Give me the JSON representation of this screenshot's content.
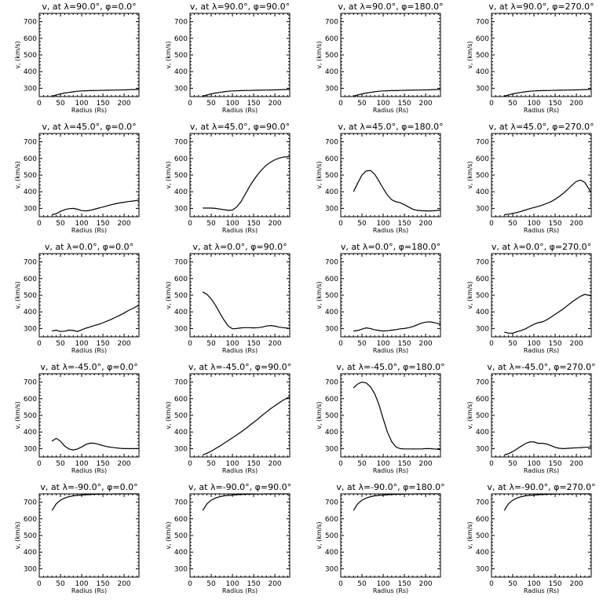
{
  "figure": {
    "colors": {
      "background": "#ffffff",
      "ink": "#000000"
    }
  },
  "chart_data": [
    {
      "type": "line",
      "title": "v, at λ=90.0°, φ=0.0°",
      "xlabel": "Radius (Rs)",
      "ylabel": "v, (km/s)",
      "xlim": [
        0,
        235
      ],
      "ylim": [
        250,
        750
      ],
      "xticks": [
        0,
        50,
        100,
        150,
        200
      ],
      "yticks": [
        300,
        400,
        500,
        600,
        700
      ],
      "grid": false,
      "x": [
        30,
        40,
        50,
        60,
        70,
        80,
        90,
        100,
        120,
        140,
        160,
        180,
        200,
        220,
        235
      ],
      "y": [
        253,
        260,
        266,
        271,
        275,
        279,
        282,
        284,
        286,
        287,
        288,
        289,
        290,
        292,
        293
      ]
    },
    {
      "type": "line",
      "title": "v, at λ=90.0°, φ=90.0°",
      "xlabel": "Radius (Rs)",
      "ylabel": "v, (km/s)",
      "xlim": [
        0,
        235
      ],
      "ylim": [
        250,
        750
      ],
      "xticks": [
        0,
        50,
        100,
        150,
        200
      ],
      "yticks": [
        300,
        400,
        500,
        600,
        700
      ],
      "grid": false,
      "x": [
        30,
        40,
        50,
        60,
        70,
        80,
        90,
        100,
        120,
        140,
        160,
        180,
        200,
        220,
        235
      ],
      "y": [
        253,
        260,
        266,
        271,
        275,
        279,
        282,
        284,
        286,
        287,
        288,
        289,
        290,
        292,
        293
      ]
    },
    {
      "type": "line",
      "title": "v, at λ=90.0°, φ=180.0°",
      "xlabel": "Radius (Rs)",
      "ylabel": "v, (km/s)",
      "xlim": [
        0,
        235
      ],
      "ylim": [
        250,
        750
      ],
      "xticks": [
        0,
        50,
        100,
        150,
        200
      ],
      "yticks": [
        300,
        400,
        500,
        600,
        700
      ],
      "grid": false,
      "x": [
        30,
        40,
        50,
        60,
        70,
        80,
        90,
        100,
        120,
        140,
        160,
        180,
        200,
        220,
        235
      ],
      "y": [
        253,
        260,
        266,
        271,
        275,
        279,
        282,
        284,
        286,
        287,
        288,
        289,
        290,
        292,
        293
      ]
    },
    {
      "type": "line",
      "title": "v, at λ=90.0°, φ=270.0°",
      "xlabel": "Radius (Rs)",
      "ylabel": "v, (km/s)",
      "xlim": [
        0,
        235
      ],
      "ylim": [
        250,
        750
      ],
      "xticks": [
        0,
        50,
        100,
        150,
        200
      ],
      "yticks": [
        300,
        400,
        500,
        600,
        700
      ],
      "grid": false,
      "x": [
        30,
        40,
        50,
        60,
        70,
        80,
        90,
        100,
        120,
        140,
        160,
        180,
        200,
        220,
        235
      ],
      "y": [
        253,
        260,
        266,
        271,
        275,
        279,
        282,
        284,
        286,
        287,
        288,
        289,
        290,
        292,
        293
      ]
    },
    {
      "type": "line",
      "title": "v, at λ=45.0°, φ=0.0°",
      "xlabel": "Radius (Rs)",
      "ylabel": "v, (km/s)",
      "xlim": [
        0,
        235
      ],
      "ylim": [
        250,
        750
      ],
      "xticks": [
        0,
        50,
        100,
        150,
        200
      ],
      "yticks": [
        300,
        400,
        500,
        600,
        700
      ],
      "grid": false,
      "x": [
        30,
        40,
        50,
        60,
        70,
        80,
        90,
        100,
        110,
        120,
        130,
        140,
        150,
        160,
        170,
        180,
        190,
        200,
        210,
        220,
        235
      ],
      "y": [
        262,
        268,
        282,
        292,
        298,
        300,
        295,
        287,
        285,
        288,
        295,
        302,
        308,
        315,
        322,
        328,
        333,
        337,
        341,
        344,
        350
      ]
    },
    {
      "type": "line",
      "title": "v, at λ=45.0°, φ=90.0°",
      "xlabel": "Radius (Rs)",
      "ylabel": "v, (km/s)",
      "xlim": [
        0,
        235
      ],
      "ylim": [
        250,
        750
      ],
      "xticks": [
        0,
        50,
        100,
        150,
        200
      ],
      "yticks": [
        300,
        400,
        500,
        600,
        700
      ],
      "grid": false,
      "x": [
        30,
        40,
        50,
        60,
        70,
        80,
        90,
        100,
        110,
        120,
        130,
        140,
        150,
        160,
        170,
        180,
        190,
        200,
        210,
        220,
        235
      ],
      "y": [
        302,
        302,
        302,
        300,
        296,
        292,
        288,
        290,
        308,
        340,
        385,
        430,
        470,
        505,
        535,
        560,
        578,
        592,
        602,
        608,
        612
      ]
    },
    {
      "type": "line",
      "title": "v, at λ=45.0°, φ=180.0°",
      "xlabel": "Radius (Rs)",
      "ylabel": "v, (km/s)",
      "xlim": [
        0,
        235
      ],
      "ylim": [
        250,
        750
      ],
      "xticks": [
        0,
        50,
        100,
        150,
        200
      ],
      "yticks": [
        300,
        400,
        500,
        600,
        700
      ],
      "grid": false,
      "x": [
        30,
        40,
        50,
        60,
        70,
        80,
        90,
        100,
        110,
        120,
        130,
        140,
        150,
        160,
        170,
        180,
        190,
        200,
        210,
        220,
        235
      ],
      "y": [
        400,
        452,
        500,
        525,
        528,
        505,
        465,
        420,
        380,
        352,
        340,
        334,
        322,
        308,
        295,
        288,
        286,
        285,
        285,
        286,
        290
      ]
    },
    {
      "type": "line",
      "title": "v, at λ=45.0°, φ=270.0°",
      "xlabel": "Radius (Rs)",
      "ylabel": "v, (km/s)",
      "xlim": [
        0,
        235
      ],
      "ylim": [
        250,
        750
      ],
      "xticks": [
        0,
        50,
        100,
        150,
        200
      ],
      "yticks": [
        300,
        400,
        500,
        600,
        700
      ],
      "grid": false,
      "x": [
        30,
        40,
        50,
        60,
        70,
        80,
        90,
        100,
        110,
        120,
        130,
        140,
        150,
        160,
        170,
        180,
        190,
        200,
        210,
        220,
        235
      ],
      "y": [
        262,
        265,
        270,
        275,
        282,
        290,
        298,
        305,
        312,
        320,
        330,
        340,
        355,
        372,
        392,
        415,
        440,
        462,
        470,
        455,
        395
      ]
    },
    {
      "type": "line",
      "title": "v, at λ=0.0°, φ=0.0°",
      "xlabel": "Radius (Rs)",
      "ylabel": "v, (km/s)",
      "xlim": [
        0,
        235
      ],
      "ylim": [
        250,
        750
      ],
      "xticks": [
        0,
        50,
        100,
        150,
        200
      ],
      "yticks": [
        300,
        400,
        500,
        600,
        700
      ],
      "grid": false,
      "x": [
        30,
        40,
        50,
        60,
        70,
        80,
        90,
        100,
        110,
        120,
        130,
        140,
        150,
        160,
        170,
        180,
        190,
        200,
        210,
        220,
        235
      ],
      "y": [
        285,
        290,
        282,
        284,
        290,
        288,
        282,
        292,
        302,
        310,
        318,
        325,
        335,
        345,
        355,
        368,
        380,
        393,
        408,
        420,
        440
      ]
    },
    {
      "type": "line",
      "title": "v, at λ=0.0°, φ=90.0°",
      "xlabel": "Radius (Rs)",
      "ylabel": "v, (km/s)",
      "xlim": [
        0,
        235
      ],
      "ylim": [
        250,
        750
      ],
      "xticks": [
        0,
        50,
        100,
        150,
        200
      ],
      "yticks": [
        300,
        400,
        500,
        600,
        700
      ],
      "grid": false,
      "x": [
        30,
        40,
        50,
        60,
        70,
        80,
        90,
        100,
        110,
        120,
        130,
        140,
        150,
        160,
        170,
        180,
        190,
        200,
        210,
        220,
        235
      ],
      "y": [
        520,
        505,
        478,
        440,
        395,
        352,
        315,
        298,
        300,
        304,
        305,
        305,
        304,
        305,
        308,
        315,
        318,
        314,
        308,
        305,
        300
      ]
    },
    {
      "type": "line",
      "title": "v, at λ=0.0°, φ=180.0°",
      "xlabel": "Radius (Rs)",
      "ylabel": "v, (km/s)",
      "xlim": [
        0,
        235
      ],
      "ylim": [
        250,
        750
      ],
      "xticks": [
        0,
        50,
        100,
        150,
        200
      ],
      "yticks": [
        300,
        400,
        500,
        600,
        700
      ],
      "grid": false,
      "x": [
        30,
        40,
        50,
        60,
        70,
        80,
        90,
        100,
        110,
        120,
        130,
        140,
        150,
        160,
        170,
        180,
        190,
        200,
        210,
        220,
        235
      ],
      "y": [
        285,
        288,
        296,
        304,
        300,
        292,
        288,
        285,
        287,
        290,
        293,
        298,
        300,
        305,
        312,
        322,
        332,
        338,
        340,
        336,
        325
      ]
    },
    {
      "type": "line",
      "title": "v, at λ=0.0°, φ=270.0°",
      "xlabel": "Radius (Rs)",
      "ylabel": "v, (km/s)",
      "xlim": [
        0,
        235
      ],
      "ylim": [
        250,
        750
      ],
      "xticks": [
        0,
        50,
        100,
        150,
        200
      ],
      "yticks": [
        300,
        400,
        500,
        600,
        700
      ],
      "grid": false,
      "x": [
        30,
        40,
        50,
        60,
        70,
        80,
        90,
        100,
        110,
        120,
        130,
        140,
        150,
        160,
        170,
        180,
        190,
        200,
        210,
        220,
        235
      ],
      "y": [
        278,
        272,
        272,
        280,
        288,
        298,
        312,
        325,
        335,
        340,
        352,
        368,
        385,
        402,
        420,
        440,
        460,
        478,
        494,
        505,
        495
      ]
    },
    {
      "type": "line",
      "title": "v, at λ=-45.0°, φ=0.0°",
      "xlabel": "Radius (Rs)",
      "ylabel": "v, (km/s)",
      "xlim": [
        0,
        235
      ],
      "ylim": [
        250,
        750
      ],
      "xticks": [
        0,
        50,
        100,
        150,
        200
      ],
      "yticks": [
        300,
        400,
        500,
        600,
        700
      ],
      "grid": false,
      "x": [
        30,
        40,
        50,
        60,
        70,
        80,
        90,
        100,
        110,
        120,
        130,
        140,
        150,
        160,
        170,
        180,
        190,
        200,
        210,
        220,
        235
      ],
      "y": [
        345,
        362,
        345,
        315,
        298,
        292,
        298,
        310,
        325,
        333,
        332,
        326,
        318,
        312,
        308,
        305,
        302,
        300,
        300,
        300,
        300
      ]
    },
    {
      "type": "line",
      "title": "v, at λ=-45.0°, φ=90.0°",
      "xlabel": "Radius (Rs)",
      "ylabel": "v, (km/s)",
      "xlim": [
        0,
        235
      ],
      "ylim": [
        250,
        750
      ],
      "xticks": [
        0,
        50,
        100,
        150,
        200
      ],
      "yticks": [
        300,
        400,
        500,
        600,
        700
      ],
      "grid": false,
      "x": [
        30,
        40,
        50,
        60,
        70,
        80,
        90,
        100,
        110,
        120,
        130,
        140,
        150,
        160,
        170,
        180,
        190,
        200,
        210,
        220,
        235
      ],
      "y": [
        262,
        272,
        285,
        300,
        315,
        332,
        348,
        365,
        382,
        400,
        418,
        438,
        458,
        478,
        500,
        520,
        540,
        558,
        575,
        592,
        612
      ]
    },
    {
      "type": "line",
      "title": "v, at λ=-45.0°, φ=180.0°",
      "xlabel": "Radius (Rs)",
      "ylabel": "v, (km/s)",
      "xlim": [
        0,
        235
      ],
      "ylim": [
        250,
        750
      ],
      "xticks": [
        0,
        50,
        100,
        150,
        200
      ],
      "yticks": [
        300,
        400,
        500,
        600,
        700
      ],
      "grid": false,
      "x": [
        30,
        40,
        50,
        60,
        70,
        80,
        90,
        100,
        110,
        120,
        130,
        140,
        150,
        160,
        170,
        180,
        190,
        200,
        210,
        220,
        235
      ],
      "y": [
        665,
        688,
        700,
        695,
        672,
        630,
        565,
        480,
        400,
        342,
        310,
        300,
        298,
        298,
        298,
        298,
        298,
        300,
        300,
        298,
        295
      ]
    },
    {
      "type": "line",
      "title": "v, at λ=-45.0°, φ=270.0°",
      "xlabel": "Radius (Rs)",
      "ylabel": "v, (km/s)",
      "xlim": [
        0,
        235
      ],
      "ylim": [
        250,
        750
      ],
      "xticks": [
        0,
        50,
        100,
        150,
        200
      ],
      "yticks": [
        300,
        400,
        500,
        600,
        700
      ],
      "grid": false,
      "x": [
        30,
        40,
        50,
        60,
        70,
        80,
        90,
        100,
        110,
        120,
        130,
        140,
        150,
        160,
        170,
        180,
        190,
        200,
        210,
        220,
        235
      ],
      "y": [
        262,
        270,
        282,
        298,
        315,
        330,
        340,
        340,
        332,
        332,
        328,
        318,
        308,
        302,
        300,
        302,
        304,
        305,
        306,
        308,
        310
      ]
    },
    {
      "type": "line",
      "title": "v, at λ=-90.0°, φ=0.0°",
      "xlabel": "Radius (Rs)",
      "ylabel": "v, (km/s)",
      "xlim": [
        0,
        235
      ],
      "ylim": [
        250,
        750
      ],
      "xticks": [
        0,
        50,
        100,
        150,
        200
      ],
      "yticks": [
        300,
        400,
        500,
        600,
        700
      ],
      "grid": false,
      "x": [
        30,
        40,
        50,
        60,
        70,
        80,
        90,
        100,
        120,
        140,
        160,
        180,
        200,
        220,
        235
      ],
      "y": [
        650,
        690,
        712,
        725,
        733,
        738,
        741,
        743,
        746,
        748,
        749,
        750,
        751,
        751,
        752
      ]
    },
    {
      "type": "line",
      "title": "v, at λ=-90.0°, φ=90.0°",
      "xlabel": "Radius (Rs)",
      "ylabel": "v, (km/s)",
      "xlim": [
        0,
        235
      ],
      "ylim": [
        250,
        750
      ],
      "xticks": [
        0,
        50,
        100,
        150,
        200
      ],
      "yticks": [
        300,
        400,
        500,
        600,
        700
      ],
      "grid": false,
      "x": [
        30,
        40,
        50,
        60,
        70,
        80,
        90,
        100,
        120,
        140,
        160,
        180,
        200,
        220,
        235
      ],
      "y": [
        650,
        690,
        712,
        725,
        733,
        738,
        741,
        743,
        746,
        748,
        749,
        750,
        751,
        751,
        752
      ]
    },
    {
      "type": "line",
      "title": "v, at λ=-90.0°, φ=180.0°",
      "xlabel": "Radius (Rs)",
      "ylabel": "v, (km/s)",
      "xlim": [
        0,
        235
      ],
      "ylim": [
        250,
        750
      ],
      "xticks": [
        0,
        50,
        100,
        150,
        200
      ],
      "yticks": [
        300,
        400,
        500,
        600,
        700
      ],
      "grid": false,
      "x": [
        30,
        40,
        50,
        60,
        70,
        80,
        90,
        100,
        120,
        140,
        160,
        180,
        200,
        220,
        235
      ],
      "y": [
        650,
        690,
        712,
        725,
        733,
        738,
        741,
        743,
        746,
        748,
        749,
        750,
        751,
        751,
        752
      ]
    },
    {
      "type": "line",
      "title": "v, at λ=-90.0°, φ=270.0°",
      "xlabel": "Radius (Rs)",
      "ylabel": "v, (km/s)",
      "xlim": [
        0,
        235
      ],
      "ylim": [
        250,
        750
      ],
      "xticks": [
        0,
        50,
        100,
        150,
        200
      ],
      "yticks": [
        300,
        400,
        500,
        600,
        700
      ],
      "grid": false,
      "x": [
        30,
        40,
        50,
        60,
        70,
        80,
        90,
        100,
        120,
        140,
        160,
        180,
        200,
        220,
        235
      ],
      "y": [
        650,
        690,
        712,
        725,
        733,
        738,
        741,
        743,
        746,
        748,
        749,
        750,
        751,
        751,
        752
      ]
    }
  ]
}
